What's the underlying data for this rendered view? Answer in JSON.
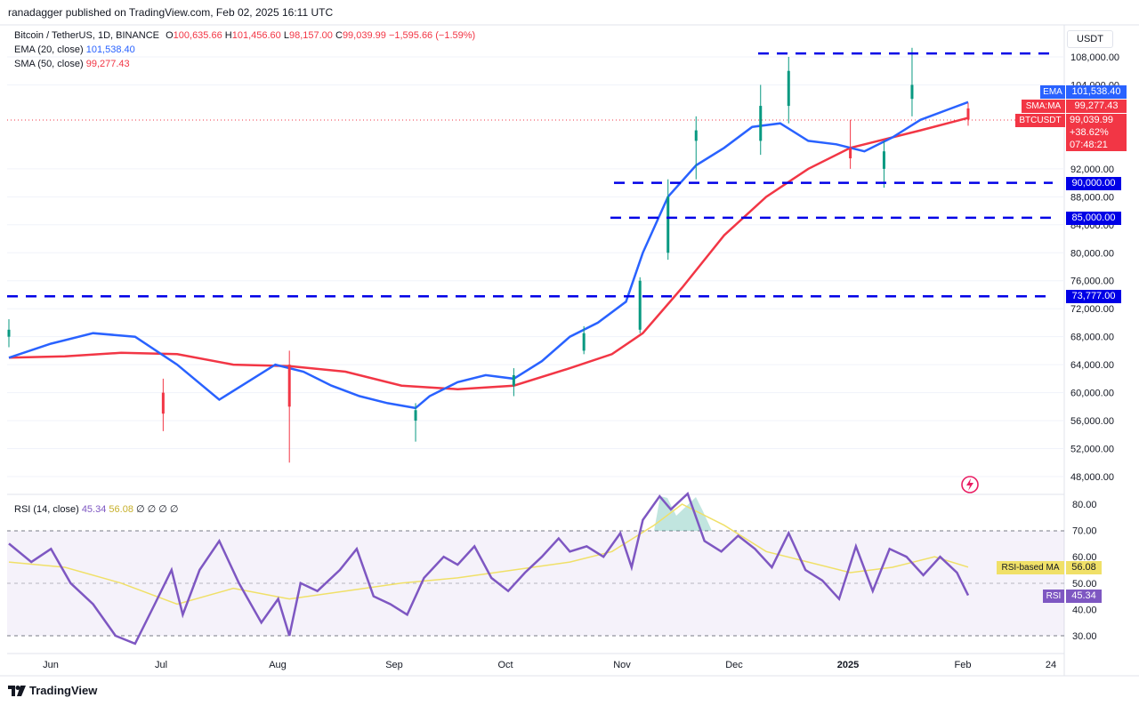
{
  "header": {
    "published": "ranadagger published on TradingView.com, Feb 02, 2025 16:11 UTC",
    "currency": "USDT"
  },
  "legend": {
    "symbol": "Bitcoin / TetherUS, 1D, BINANCE",
    "o_label": "O",
    "o": "100,635.66",
    "h_label": "H",
    "h": "101,456.60",
    "l_label": "L",
    "l": "98,157.00",
    "c_label": "C",
    "c": "99,039.99",
    "change": "−1,595.66 (−1.59%)",
    "ema_label": "EMA (20, close)",
    "ema_value": "101,538.40",
    "sma_label": "SMA (50, close)",
    "sma_value": "99,277.43"
  },
  "rsi_legend": {
    "label": "RSI (14, close)",
    "rsi": "45.34",
    "ma": "56.08",
    "rest": "∅ ∅ ∅ ∅"
  },
  "price_badges": {
    "ema_tag": "EMA",
    "ema_price": "101,538.40",
    "sma_tag": "SMA:MA",
    "sma_price": "99,277.43",
    "sym_tag": "BTCUSDT",
    "sym_price": "99,039.99",
    "sym_change": "+38.62%",
    "countdown": "07:48:21"
  },
  "level_labels": [
    "90,000.00",
    "85,000.00",
    "73,777.00"
  ],
  "rsi_badges": {
    "ma_tag": "RSI-based MA",
    "ma_value": "56.08",
    "rsi_tag": "RSI",
    "rsi_value": "45.34"
  },
  "x_axis_labels": [
    "Jun",
    "Jul",
    "Aug",
    "Sep",
    "Oct",
    "Nov",
    "Dec",
    "2025",
    "Feb",
    "24"
  ],
  "footer": {
    "brand": "TradingView"
  },
  "colors": {
    "up": "#089981",
    "down": "#f23645",
    "ema": "#2962ff",
    "sma": "#f23645",
    "rsi": "#7e57c2",
    "rsi_ma": "#f0e068",
    "level": "#0000e6"
  },
  "chart_data": [
    {
      "type": "candlestick",
      "title": "Bitcoin / TetherUS, 1D, BINANCE",
      "ylabel": "USDT",
      "yticks": [
        "48,000.00",
        "52,000.00",
        "56,000.00",
        "60,000.00",
        "64,000.00",
        "68,000.00",
        "72,000.00",
        "76,000.00",
        "80,000.00",
        "84,000.00",
        "88,000.00",
        "92,000.00",
        "104,000.00",
        "108,000.00"
      ],
      "ylim": [
        45000,
        110000
      ],
      "horizontal_levels": [
        108500,
        90000,
        85000,
        73777
      ],
      "ema_20_last": 101538.4,
      "sma_50_last": 99277.43,
      "last_close": 99039.99,
      "ema_20_path": [
        [
          0,
          65000
        ],
        [
          15,
          67000
        ],
        [
          30,
          68500
        ],
        [
          45,
          68000
        ],
        [
          60,
          64000
        ],
        [
          75,
          59000
        ],
        [
          85,
          61500
        ],
        [
          95,
          64000
        ],
        [
          105,
          63000
        ],
        [
          115,
          61000
        ],
        [
          125,
          59500
        ],
        [
          135,
          58500
        ],
        [
          145,
          57800
        ],
        [
          150,
          59500
        ],
        [
          160,
          61500
        ],
        [
          170,
          62500
        ],
        [
          180,
          62000
        ],
        [
          190,
          64500
        ],
        [
          200,
          68000
        ],
        [
          210,
          70000
        ],
        [
          220,
          73000
        ],
        [
          226,
          80000
        ],
        [
          235,
          88000
        ],
        [
          245,
          92500
        ],
        [
          255,
          95000
        ],
        [
          265,
          98000
        ],
        [
          275,
          98500
        ],
        [
          285,
          96000
        ],
        [
          295,
          95500
        ],
        [
          305,
          94500
        ],
        [
          315,
          96500
        ],
        [
          325,
          99000
        ],
        [
          335,
          100500
        ],
        [
          342,
          101538.4
        ]
      ],
      "sma_50_path": [
        [
          0,
          65000
        ],
        [
          20,
          65200
        ],
        [
          40,
          65700
        ],
        [
          60,
          65500
        ],
        [
          80,
          64000
        ],
        [
          100,
          63800
        ],
        [
          120,
          63000
        ],
        [
          140,
          61000
        ],
        [
          160,
          60500
        ],
        [
          180,
          61000
        ],
        [
          200,
          63500
        ],
        [
          215,
          65500
        ],
        [
          226,
          68500
        ],
        [
          240,
          75000
        ],
        [
          255,
          82500
        ],
        [
          270,
          88000
        ],
        [
          285,
          92000
        ],
        [
          300,
          95000
        ],
        [
          310,
          96000
        ],
        [
          325,
          97500
        ],
        [
          342,
          99277.43
        ]
      ],
      "candles_sample": [
        {
          "t": 0,
          "o": 68000,
          "h": 70500,
          "l": 66500,
          "c": 69000
        },
        {
          "t": 55,
          "o": 60000,
          "h": 62000,
          "l": 54500,
          "c": 57000
        },
        {
          "t": 100,
          "o": 64000,
          "h": 66000,
          "l": 50000,
          "c": 58000
        },
        {
          "t": 145,
          "o": 56000,
          "h": 58500,
          "l": 53000,
          "c": 57500
        },
        {
          "t": 180,
          "o": 61000,
          "h": 63500,
          "l": 59500,
          "c": 62500
        },
        {
          "t": 205,
          "o": 66000,
          "h": 69500,
          "l": 65500,
          "c": 68500
        },
        {
          "t": 225,
          "o": 69000,
          "h": 76500,
          "l": 68500,
          "c": 76000
        },
        {
          "t": 235,
          "o": 80000,
          "h": 90500,
          "l": 79000,
          "c": 88000
        },
        {
          "t": 245,
          "o": 96000,
          "h": 99500,
          "l": 90500,
          "c": 97500
        },
        {
          "t": 268,
          "o": 96000,
          "h": 104000,
          "l": 94000,
          "c": 101000
        },
        {
          "t": 278,
          "o": 101000,
          "h": 108000,
          "l": 98500,
          "c": 106000
        },
        {
          "t": 300,
          "o": 95000,
          "h": 99000,
          "l": 92000,
          "c": 93500
        },
        {
          "t": 312,
          "o": 92000,
          "h": 96000,
          "l": 89300,
          "c": 94500
        },
        {
          "t": 322,
          "o": 102000,
          "h": 109300,
          "l": 99500,
          "c": 104000
        },
        {
          "t": 342,
          "o": 100635.66,
          "h": 101456.6,
          "l": 98157.0,
          "c": 99039.99
        }
      ]
    },
    {
      "type": "line",
      "title": "RSI (14, close)",
      "ylim": [
        25,
        85
      ],
      "yticks": [
        "30.00",
        "40.00",
        "50.00",
        "60.00",
        "70.00",
        "80.00"
      ],
      "bands": [
        30,
        50,
        70
      ],
      "series": [
        {
          "name": "RSI",
          "values": [
            [
              0,
              65
            ],
            [
              8,
              58
            ],
            [
              15,
              63
            ],
            [
              22,
              50
            ],
            [
              30,
              42
            ],
            [
              38,
              30
            ],
            [
              45,
              27
            ],
            [
              52,
              42
            ],
            [
              58,
              55
            ],
            [
              62,
              38
            ],
            [
              68,
              55
            ],
            [
              75,
              66
            ],
            [
              82,
              50
            ],
            [
              90,
              35
            ],
            [
              96,
              44
            ],
            [
              100,
              30
            ],
            [
              104,
              50
            ],
            [
              110,
              47
            ],
            [
              118,
              55
            ],
            [
              124,
              63
            ],
            [
              130,
              45
            ],
            [
              136,
              42
            ],
            [
              142,
              38
            ],
            [
              148,
              52
            ],
            [
              155,
              60
            ],
            [
              160,
              57
            ],
            [
              166,
              64
            ],
            [
              172,
              52
            ],
            [
              178,
              47
            ],
            [
              184,
              54
            ],
            [
              190,
              60
            ],
            [
              196,
              67
            ],
            [
              200,
              62
            ],
            [
              206,
              64
            ],
            [
              212,
              60
            ],
            [
              218,
              69
            ],
            [
              222,
              56
            ],
            [
              226,
              74
            ],
            [
              232,
              83
            ],
            [
              236,
              78
            ],
            [
              242,
              84
            ],
            [
              248,
              66
            ],
            [
              254,
              62
            ],
            [
              260,
              68
            ],
            [
              266,
              63
            ],
            [
              272,
              56
            ],
            [
              278,
              69
            ],
            [
              284,
              55
            ],
            [
              290,
              51
            ],
            [
              296,
              44
            ],
            [
              302,
              64
            ],
            [
              308,
              47
            ],
            [
              314,
              63
            ],
            [
              320,
              60
            ],
            [
              326,
              53
            ],
            [
              332,
              60
            ],
            [
              338,
              54
            ],
            [
              342,
              45.34
            ]
          ]
        },
        {
          "name": "RSI-based MA",
          "values": [
            [
              0,
              58
            ],
            [
              20,
              56
            ],
            [
              40,
              50
            ],
            [
              60,
              42
            ],
            [
              80,
              48
            ],
            [
              100,
              44
            ],
            [
              120,
              47
            ],
            [
              140,
              50
            ],
            [
              160,
              52
            ],
            [
              180,
              55
            ],
            [
              200,
              58
            ],
            [
              215,
              62
            ],
            [
              230,
              72
            ],
            [
              240,
              80
            ],
            [
              255,
              72
            ],
            [
              270,
              62
            ],
            [
              285,
              58
            ],
            [
              300,
              54
            ],
            [
              315,
              56
            ],
            [
              330,
              60
            ],
            [
              342,
              56.08
            ]
          ]
        }
      ]
    }
  ]
}
